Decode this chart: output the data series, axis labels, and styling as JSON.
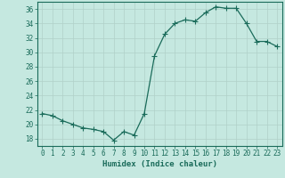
{
  "x": [
    0,
    1,
    2,
    3,
    4,
    5,
    6,
    7,
    8,
    9,
    10,
    11,
    12,
    13,
    14,
    15,
    16,
    17,
    18,
    19,
    20,
    21,
    22,
    23
  ],
  "y": [
    21.5,
    21.2,
    20.5,
    20.0,
    19.5,
    19.3,
    19.0,
    17.8,
    19.0,
    18.5,
    21.5,
    29.5,
    32.5,
    34.0,
    34.5,
    34.3,
    35.5,
    36.3,
    36.1,
    36.1,
    34.0,
    31.5,
    31.5,
    30.8
  ],
  "line_color": "#1a6b5a",
  "marker": "+",
  "markersize": 4.0,
  "linewidth": 0.9,
  "background_color": "#c5e8e0",
  "grid_color": "#b0d0c8",
  "xlabel": "Humidex (Indice chaleur)",
  "ylabel": "",
  "ylim": [
    17,
    37
  ],
  "xlim": [
    -0.5,
    23.5
  ],
  "yticks": [
    18,
    20,
    22,
    24,
    26,
    28,
    30,
    32,
    34,
    36
  ],
  "xticks": [
    0,
    1,
    2,
    3,
    4,
    5,
    6,
    7,
    8,
    9,
    10,
    11,
    12,
    13,
    14,
    15,
    16,
    17,
    18,
    19,
    20,
    21,
    22,
    23
  ],
  "xlabel_fontsize": 6.5,
  "tick_fontsize": 5.5
}
